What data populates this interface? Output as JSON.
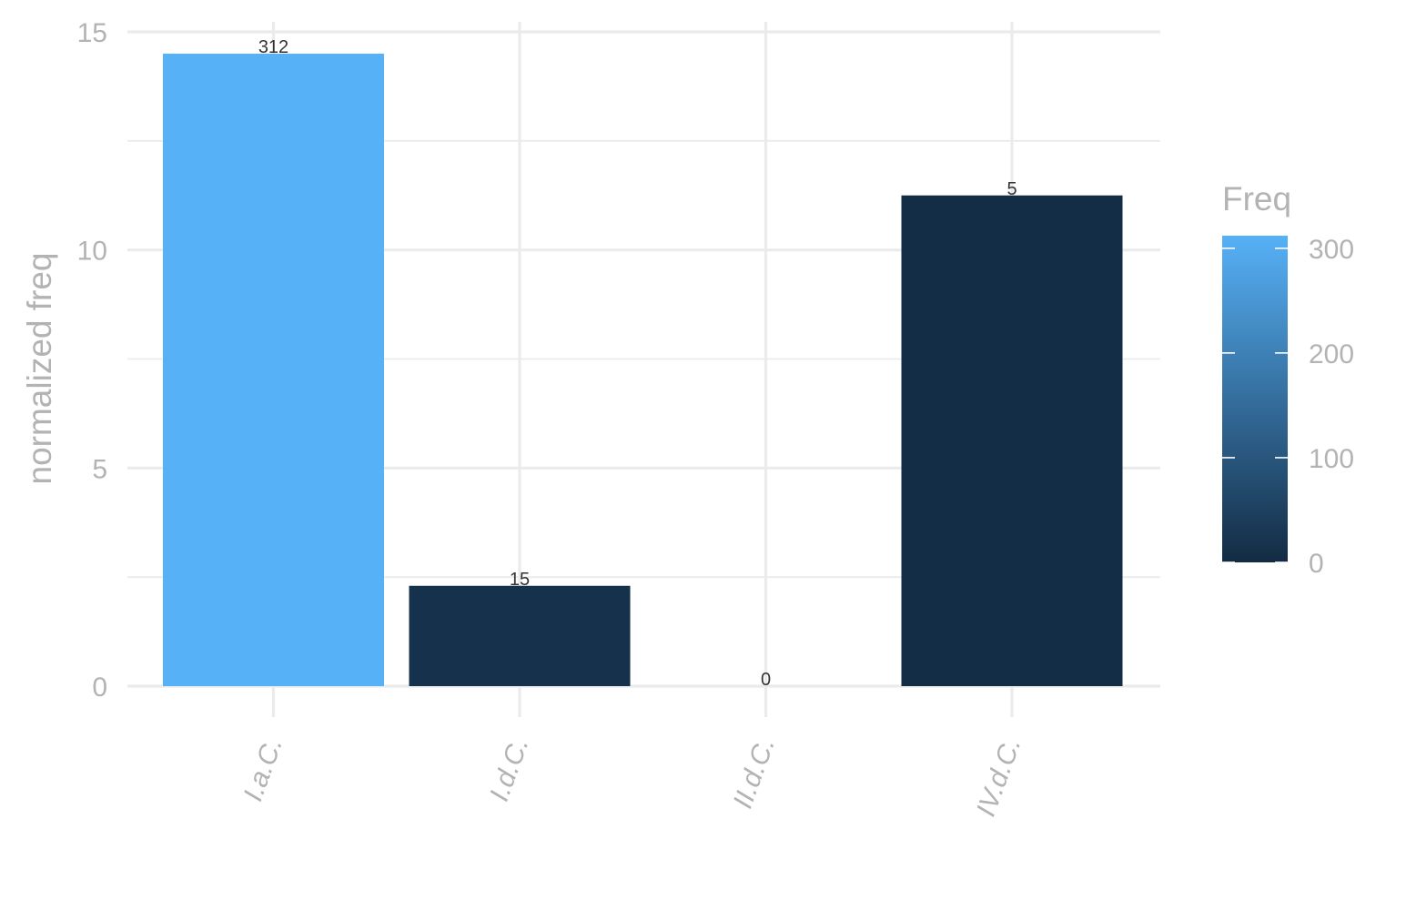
{
  "chart_data": {
    "type": "bar",
    "title": "",
    "xlabel": "",
    "ylabel": "normalized freq",
    "ylim": [
      0,
      15
    ],
    "yticks": [
      0,
      5,
      10,
      15
    ],
    "categories": [
      "I.a.C.",
      "I.d.C.",
      "II.d.C.",
      "IV.d.C."
    ],
    "values": [
      14.5,
      2.3,
      0,
      11.25
    ],
    "freq": [
      312,
      15,
      0,
      5
    ],
    "bar_labels": [
      "312",
      "15",
      "0",
      "5"
    ],
    "grid": true,
    "legend": {
      "title": "Freq",
      "placement": "right",
      "range": [
        0,
        312
      ],
      "ticks": [
        0,
        100,
        200,
        300
      ],
      "tick_labels": [
        "0",
        "100",
        "200",
        "300"
      ],
      "color_low": "#132B43",
      "color_high": "#56B1F7"
    }
  }
}
